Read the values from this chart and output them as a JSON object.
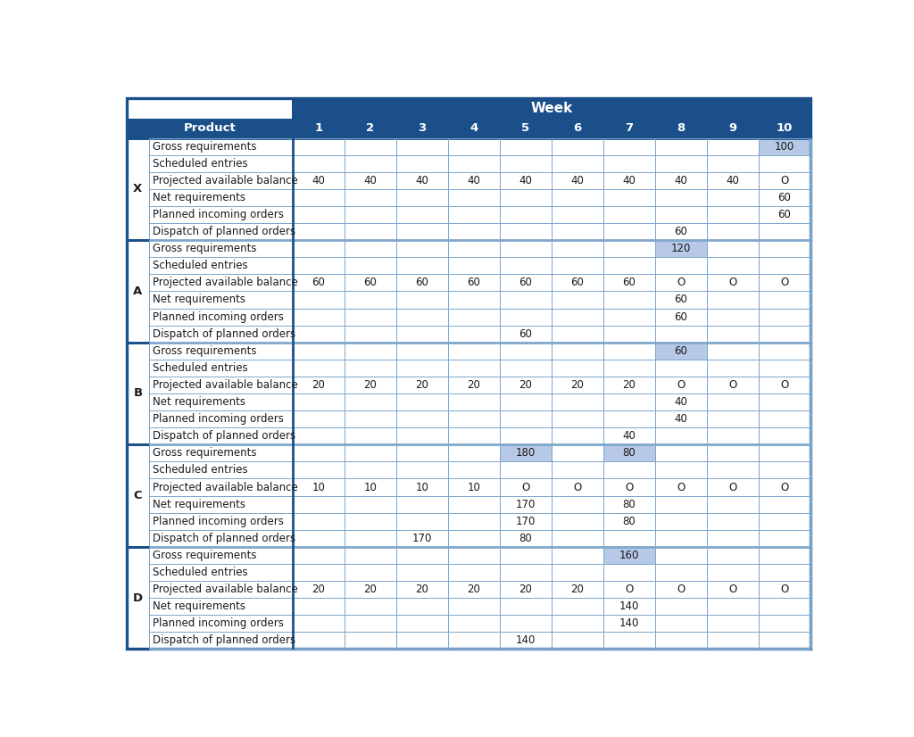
{
  "title": "Week",
  "header_bg": "#1b4f8a",
  "header_text": "#ffffff",
  "highlight_bg": "#b8c9e8",
  "border_thick": "#1b4f8a",
  "border_thin": "#7fa8cc",
  "text_color": "#1a1a1a",
  "week_cols": [
    "1",
    "2",
    "3",
    "4",
    "5",
    "6",
    "7",
    "8",
    "9",
    "10"
  ],
  "products": [
    "X",
    "A",
    "B",
    "C",
    "D"
  ],
  "row_labels": [
    "Gross requirements",
    "Scheduled entries",
    "Projected available balance",
    "Net requirements",
    "Planned incoming orders",
    "Dispatch of planned orders"
  ],
  "data": {
    "X": {
      "Gross requirements": [
        "",
        "",
        "",
        "",
        "",
        "",
        "",
        "",
        "",
        "100"
      ],
      "Scheduled entries": [
        "",
        "",
        "",
        "",
        "",
        "",
        "",
        "",
        "",
        ""
      ],
      "Projected available balance": [
        "40",
        "40",
        "40",
        "40",
        "40",
        "40",
        "40",
        "40",
        "40",
        "O"
      ],
      "Net requirements": [
        "",
        "",
        "",
        "",
        "",
        "",
        "",
        "",
        "",
        "60"
      ],
      "Planned incoming orders": [
        "",
        "",
        "",
        "",
        "",
        "",
        "",
        "",
        "",
        "60"
      ],
      "Dispatch of planned orders": [
        "",
        "",
        "",
        "",
        "",
        "",
        "",
        "60",
        "",
        ""
      ]
    },
    "A": {
      "Gross requirements": [
        "",
        "",
        "",
        "",
        "",
        "",
        "",
        "120",
        "",
        ""
      ],
      "Scheduled entries": [
        "",
        "",
        "",
        "",
        "",
        "",
        "",
        "",
        "",
        ""
      ],
      "Projected available balance": [
        "60",
        "60",
        "60",
        "60",
        "60",
        "60",
        "60",
        "O",
        "O",
        "O"
      ],
      "Net requirements": [
        "",
        "",
        "",
        "",
        "",
        "",
        "",
        "60",
        "",
        ""
      ],
      "Planned incoming orders": [
        "",
        "",
        "",
        "",
        "",
        "",
        "",
        "60",
        "",
        ""
      ],
      "Dispatch of planned orders": [
        "",
        "",
        "",
        "",
        "60",
        "",
        "",
        "",
        "",
        ""
      ]
    },
    "B": {
      "Gross requirements": [
        "",
        "",
        "",
        "",
        "",
        "",
        "",
        "60",
        "",
        ""
      ],
      "Scheduled entries": [
        "",
        "",
        "",
        "",
        "",
        "",
        "",
        "",
        "",
        ""
      ],
      "Projected available balance": [
        "20",
        "20",
        "20",
        "20",
        "20",
        "20",
        "20",
        "O",
        "O",
        "O"
      ],
      "Net requirements": [
        "",
        "",
        "",
        "",
        "",
        "",
        "",
        "40",
        "",
        ""
      ],
      "Planned incoming orders": [
        "",
        "",
        "",
        "",
        "",
        "",
        "",
        "40",
        "",
        ""
      ],
      "Dispatch of planned orders": [
        "",
        "",
        "",
        "",
        "",
        "",
        "40",
        "",
        "",
        ""
      ]
    },
    "C": {
      "Gross requirements": [
        "",
        "",
        "",
        "",
        "180",
        "",
        "80",
        "",
        "",
        ""
      ],
      "Scheduled entries": [
        "",
        "",
        "",
        "",
        "",
        "",
        "",
        "",
        "",
        ""
      ],
      "Projected available balance": [
        "10",
        "10",
        "10",
        "10",
        "O",
        "O",
        "O",
        "O",
        "O",
        "O"
      ],
      "Net requirements": [
        "",
        "",
        "",
        "",
        "170",
        "",
        "80",
        "",
        "",
        ""
      ],
      "Planned incoming orders": [
        "",
        "",
        "",
        "",
        "170",
        "",
        "80",
        "",
        "",
        ""
      ],
      "Dispatch of planned orders": [
        "",
        "",
        "170",
        "",
        "80",
        "",
        "",
        "",
        "",
        ""
      ]
    },
    "D": {
      "Gross requirements": [
        "",
        "",
        "",
        "",
        "",
        "",
        "160",
        "",
        "",
        ""
      ],
      "Scheduled entries": [
        "",
        "",
        "",
        "",
        "",
        "",
        "",
        "",
        "",
        ""
      ],
      "Projected available balance": [
        "20",
        "20",
        "20",
        "20",
        "20",
        "20",
        "O",
        "O",
        "O",
        "O"
      ],
      "Net requirements": [
        "",
        "",
        "",
        "",
        "",
        "",
        "140",
        "",
        "",
        ""
      ],
      "Planned incoming orders": [
        "",
        "",
        "",
        "",
        "",
        "",
        "140",
        "",
        "",
        ""
      ],
      "Dispatch of planned orders": [
        "",
        "",
        "",
        "",
        "140",
        "",
        "",
        "",
        "",
        ""
      ]
    }
  },
  "highlight_cells": {
    "X": {
      "Gross requirements": [
        10
      ]
    },
    "A": {
      "Gross requirements": [
        8
      ]
    },
    "B": {
      "Gross requirements": [
        8
      ]
    },
    "C": {
      "Gross requirements": [
        5,
        7
      ]
    },
    "D": {
      "Gross requirements": [
        7
      ]
    }
  }
}
